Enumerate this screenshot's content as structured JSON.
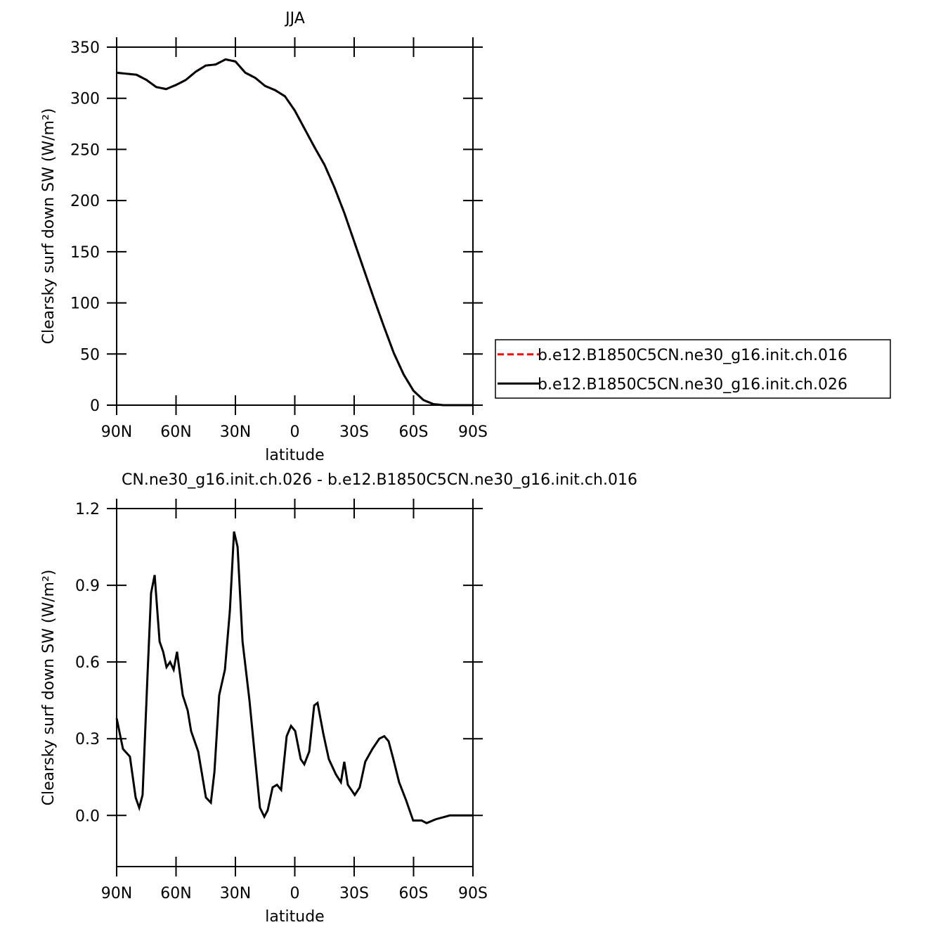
{
  "chart_data": [
    {
      "type": "line",
      "title": "JJA",
      "xlabel": "latitude",
      "ylabel": "Clearsky surf down SW (W/m²)",
      "x": [
        90,
        85,
        80,
        75,
        70,
        65,
        60,
        55,
        50,
        45,
        40,
        35,
        30,
        25,
        20,
        15,
        10,
        5,
        0,
        -5,
        -10,
        -15,
        -20,
        -25,
        -30,
        -35,
        -40,
        -45,
        -50,
        -55,
        -60,
        -65,
        -70,
        -75,
        -80,
        -85,
        -90
      ],
      "series": [
        {
          "name": "b.e12.B1850C5CN.ne30_g16.init.ch.016",
          "color": "#ff0000",
          "line_style": "dashed",
          "values": [
            325,
            324,
            323,
            318,
            311,
            309,
            313,
            318,
            326,
            332,
            333,
            338,
            336,
            325,
            320,
            312,
            308,
            302,
            288,
            270,
            252,
            235,
            213,
            188,
            160,
            132,
            104,
            77,
            51,
            30,
            14,
            5,
            1,
            0,
            0,
            0,
            0
          ]
        },
        {
          "name": "b.e12.B1850C5CN.ne30_g16.init.ch.026",
          "color": "#000000",
          "line_style": "solid",
          "values": [
            325,
            324,
            323,
            318,
            311,
            309,
            313,
            318,
            326,
            332,
            333,
            338,
            336,
            325,
            320,
            312,
            308,
            302,
            288,
            270,
            252,
            235,
            213,
            188,
            160,
            132,
            104,
            77,
            51,
            30,
            14,
            5,
            1,
            0,
            0,
            0,
            0
          ]
        }
      ],
      "xlim": [
        90,
        -90
      ],
      "xticks": [
        {
          "value": 90,
          "label": "90N"
        },
        {
          "value": 60,
          "label": "60N"
        },
        {
          "value": 30,
          "label": "30N"
        },
        0,
        {
          "value": -30,
          "label": "30S"
        },
        {
          "value": -60,
          "label": "60S"
        },
        {
          "value": -90,
          "label": "90S"
        }
      ],
      "ylim": [
        0,
        350
      ],
      "yticks": [
        0,
        50,
        100,
        150,
        200,
        250,
        300,
        350
      ],
      "legend": "right"
    },
    {
      "type": "line",
      "title": "CN.ne30_g16.init.ch.026 - b.e12.B1850C5CN.ne30_g16.init.ch.016",
      "xlabel": "latitude",
      "ylabel": "Clearsky surf down SW (W/m²)",
      "x": [
        90,
        86.8,
        83.3,
        80.4,
        78.6,
        76.9,
        74.4,
        72.6,
        70.8,
        68.3,
        66.5,
        64.8,
        63.0,
        61.2,
        59.5,
        56.6,
        54.1,
        52.4,
        48.8,
        44.9,
        42.4,
        40.6,
        38.2,
        35.3,
        32.8,
        30.7,
        28.9,
        26.4,
        22.9,
        20.4,
        17.6,
        15.4,
        13.7,
        11.2,
        9.0,
        6.9,
        4.1,
        1.9,
        -0.2,
        -3.0,
        -4.8,
        -7.3,
        -9.8,
        -11.5,
        -14.4,
        -17.2,
        -20.8,
        -23.3,
        -25.0,
        -26.8,
        -30.3,
        -32.8,
        -35.6,
        -39.2,
        -42.7,
        -45.2,
        -47.4,
        -49.8,
        -52.7,
        -56.2,
        -59.8,
        -64.1,
        -66.6,
        -71.2,
        -78.3,
        -90
      ],
      "series": [
        {
          "color": "#000000",
          "line_style": "solid",
          "values": [
            0.38,
            0.26,
            0.23,
            0.07,
            0.03,
            0.08,
            0.55,
            0.87,
            0.94,
            0.68,
            0.64,
            0.58,
            0.6,
            0.57,
            0.64,
            0.47,
            0.41,
            0.33,
            0.25,
            0.07,
            0.05,
            0.17,
            0.47,
            0.57,
            0.8,
            1.11,
            1.05,
            0.68,
            0.45,
            0.25,
            0.03,
            -0.005,
            0.02,
            0.11,
            0.12,
            0.1,
            0.31,
            0.35,
            0.33,
            0.22,
            0.2,
            0.25,
            0.43,
            0.44,
            0.32,
            0.22,
            0.16,
            0.13,
            0.21,
            0.12,
            0.08,
            0.11,
            0.21,
            0.26,
            0.3,
            0.31,
            0.29,
            0.22,
            0.13,
            0.06,
            -0.02,
            -0.02,
            -0.03,
            -0.015,
            0,
            0
          ]
        }
      ],
      "xlim": [
        90,
        -90
      ],
      "xticks": [
        {
          "value": 90,
          "label": "90N"
        },
        {
          "value": 60,
          "label": "60N"
        },
        {
          "value": 30,
          "label": "30N"
        },
        0,
        {
          "value": -30,
          "label": "30S"
        },
        {
          "value": -60,
          "label": "60S"
        },
        {
          "value": -90,
          "label": "90S"
        }
      ],
      "ylim": [
        -0.2,
        1.2
      ],
      "yticks": [
        {
          "value": 0,
          "label": "0.0"
        },
        0.3,
        0.6,
        0.9,
        1.2
      ]
    }
  ]
}
